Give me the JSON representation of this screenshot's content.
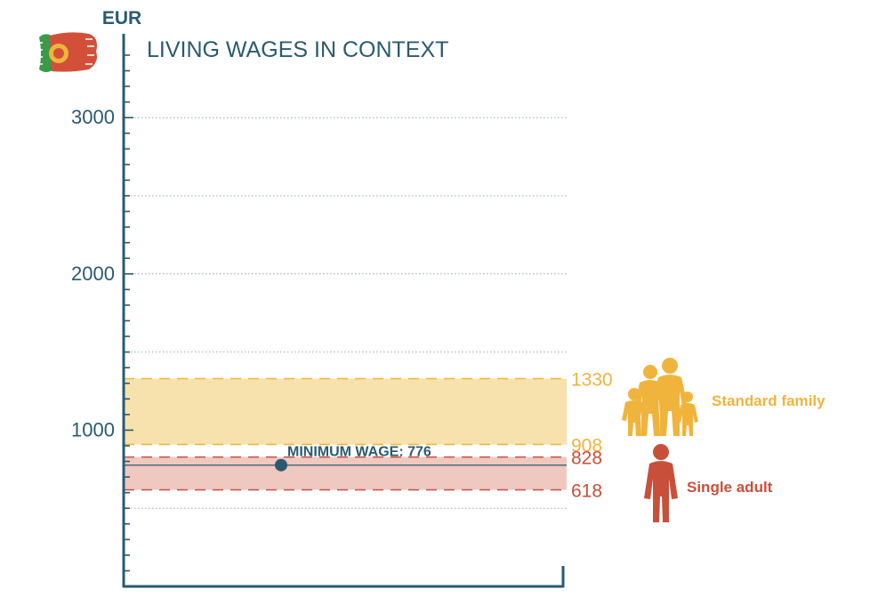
{
  "chart_data": {
    "type": "range",
    "title": "LIVING WAGES IN CONTEXT",
    "ylabel": "EUR",
    "ylim": [
      0,
      3400
    ],
    "yticks": [
      1000,
      2000,
      3000
    ],
    "ytick_labels": [
      "1000",
      "2000",
      "3000"
    ],
    "gridlines": [
      500,
      1000,
      1500,
      2000,
      2500,
      3000
    ],
    "bands": [
      {
        "name": "Standard family",
        "low": 908,
        "high": 1330,
        "low_label": "908",
        "high_label": "1330",
        "color": "#f0b43c",
        "fill": "#f7e1ad"
      },
      {
        "name": "Single adult",
        "low": 618,
        "high": 828,
        "low_label": "618",
        "high_label": "828",
        "color": "#c8503a",
        "fill": "#efc8c0"
      }
    ],
    "minimum_wage": {
      "value": 776,
      "label": "MINIMUM WAGE: 776"
    }
  },
  "colors": {
    "axis": "#2a5a70",
    "grid": "#9aa8a8",
    "family": "#f0b43c",
    "single": "#c8503a"
  },
  "icons": {
    "flag": "portugal-flag-icon",
    "family": "family-icon",
    "single": "single-adult-icon"
  }
}
